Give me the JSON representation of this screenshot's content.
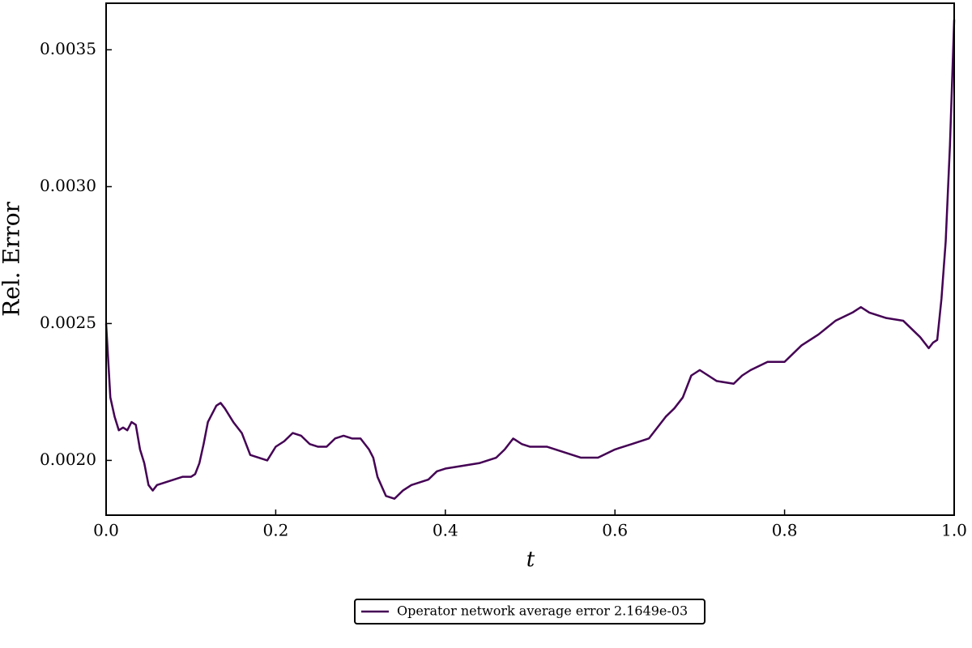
{
  "chart_data": {
    "type": "line",
    "xlabel": "t",
    "ylabel": "Rel. Error",
    "x": [
      0,
      0.005,
      0.01,
      0.015,
      0.02,
      0.025,
      0.03,
      0.035,
      0.04,
      0.045,
      0.05,
      0.055,
      0.06,
      0.07,
      0.08,
      0.09,
      0.1,
      0.105,
      0.11,
      0.115,
      0.12,
      0.125,
      0.13,
      0.135,
      0.14,
      0.15,
      0.16,
      0.17,
      0.18,
      0.19,
      0.2,
      0.21,
      0.22,
      0.23,
      0.24,
      0.25,
      0.26,
      0.27,
      0.28,
      0.29,
      0.3,
      0.31,
      0.315,
      0.32,
      0.33,
      0.34,
      0.35,
      0.36,
      0.37,
      0.38,
      0.39,
      0.4,
      0.42,
      0.44,
      0.46,
      0.47,
      0.48,
      0.49,
      0.5,
      0.52,
      0.54,
      0.56,
      0.58,
      0.6,
      0.62,
      0.64,
      0.66,
      0.67,
      0.68,
      0.69,
      0.7,
      0.71,
      0.72,
      0.74,
      0.75,
      0.76,
      0.78,
      0.8,
      0.82,
      0.84,
      0.86,
      0.88,
      0.89,
      0.9,
      0.92,
      0.94,
      0.96,
      0.97,
      0.975,
      0.98,
      0.985,
      0.99,
      0.995,
      1.0
    ],
    "series": [
      {
        "name": "Operator network average error 2.1649e-03",
        "color": "#440154",
        "values": [
          0.0025,
          0.00223,
          0.00216,
          0.00211,
          0.00212,
          0.00211,
          0.00214,
          0.00213,
          0.00204,
          0.00199,
          0.00191,
          0.00189,
          0.00191,
          0.00192,
          0.00193,
          0.00194,
          0.00194,
          0.00195,
          0.00199,
          0.00206,
          0.00214,
          0.00217,
          0.0022,
          0.00221,
          0.00219,
          0.00214,
          0.0021,
          0.00202,
          0.00201,
          0.002,
          0.00205,
          0.00207,
          0.0021,
          0.00209,
          0.00206,
          0.00205,
          0.00205,
          0.00208,
          0.00209,
          0.00208,
          0.00208,
          0.00204,
          0.00201,
          0.00194,
          0.00187,
          0.00186,
          0.00189,
          0.00191,
          0.00192,
          0.00193,
          0.00196,
          0.00197,
          0.00198,
          0.00199,
          0.00201,
          0.00204,
          0.00208,
          0.00206,
          0.00205,
          0.00205,
          0.00203,
          0.00201,
          0.00201,
          0.00204,
          0.00206,
          0.00208,
          0.00216,
          0.00219,
          0.00223,
          0.00231,
          0.00233,
          0.00231,
          0.00229,
          0.00228,
          0.00231,
          0.00233,
          0.00236,
          0.00236,
          0.00242,
          0.00246,
          0.00251,
          0.00254,
          0.00256,
          0.00254,
          0.00252,
          0.00251,
          0.00245,
          0.00241,
          0.00243,
          0.00244,
          0.00259,
          0.0028,
          0.00315,
          0.00361
        ]
      }
    ],
    "xlim": [
      0,
      1
    ],
    "xticks": [
      {
        "value": 0,
        "label": "0.0"
      },
      0.2,
      0.4,
      0.6,
      0.8,
      {
        "value": 1,
        "label": "1.0"
      }
    ],
    "ylim": [
      0.0018,
      0.00367
    ],
    "yticks": [
      {
        "value": 0.002,
        "label": "0.0020"
      },
      {
        "value": 0.0025,
        "label": "0.0025"
      },
      {
        "value": 0.003,
        "label": "0.0030"
      },
      {
        "value": 0.0035,
        "label": "0.0035"
      }
    ],
    "legend": "bottom",
    "grid": false
  }
}
